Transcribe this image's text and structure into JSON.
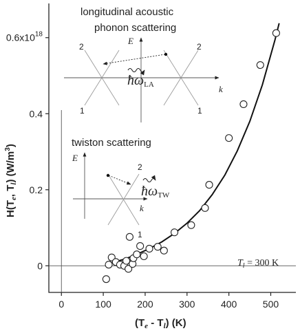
{
  "chart_data": {
    "type": "scatter",
    "xlabel": {
      "open": "(T",
      "sub1": "e",
      "mid": " - T",
      "sub2": "l",
      "close": ") (K)"
    },
    "ylabel": {
      "h": "H(T",
      "sub1": "e",
      "mid": ", T",
      "sub2": "l",
      "close": ")  (W/m",
      "sup": "3",
      "end": ")"
    },
    "xlim": [
      -30,
      560
    ],
    "ylim": [
      -0.07,
      0.69
    ],
    "x_ticks": [
      {
        "value": 0,
        "label": "0"
      },
      {
        "value": 100,
        "label": "100"
      },
      {
        "value": 200,
        "label": "200"
      },
      {
        "value": 300,
        "label": "300"
      },
      {
        "value": 400,
        "label": "400"
      },
      {
        "value": 500,
        "label": "500"
      }
    ],
    "y_ticks": [
      {
        "value": 0,
        "label": "0"
      },
      {
        "value": 0.2,
        "label": "0.2"
      },
      {
        "value": 0.4,
        "label": "0.4"
      },
      {
        "value": 0.6,
        "label": "0.6x10",
        "sup": "18"
      }
    ],
    "series": [
      {
        "kind": "points",
        "marker": "open-circle",
        "x": [
          107,
          113,
          120,
          130,
          140,
          150,
          155,
          160,
          163,
          170,
          172,
          180,
          188,
          197,
          210,
          230,
          245,
          270,
          310,
          343,
          353,
          400,
          435,
          475,
          513
        ],
        "y": [
          -0.035,
          0.003,
          0.022,
          0.01,
          0.003,
          0.0,
          0.013,
          -0.008,
          0.076,
          0.005,
          0.02,
          0.03,
          0.052,
          0.025,
          0.045,
          0.05,
          0.04,
          0.088,
          0.107,
          0.152,
          0.213,
          0.336,
          0.425,
          0.528,
          0.612
        ]
      },
      {
        "kind": "curve",
        "x": [
          120,
          150,
          180,
          210,
          240,
          270,
          300,
          330,
          360,
          390,
          420,
          450,
          480,
          510,
          520
        ],
        "y": [
          0.008,
          0.017,
          0.03,
          0.045,
          0.063,
          0.085,
          0.112,
          0.145,
          0.187,
          0.238,
          0.302,
          0.38,
          0.476,
          0.594,
          0.638
        ]
      }
    ],
    "reference_line": {
      "y": 0,
      "label_var": "T",
      "label_sub": "l",
      "label_rest": " = 300 K"
    },
    "grid": false,
    "legend": "none"
  },
  "insets": {
    "top": {
      "title_line1": "longitudinal acoustic",
      "title_line2": "phonon scattering",
      "axis_e": "E",
      "axis_k": "k",
      "branch_upper_left": "2",
      "branch_upper_right": "2",
      "branch_lower_left": "1",
      "branch_lower_right": "1",
      "omega_hbar": "ħω",
      "omega_sub": "LA"
    },
    "bottom": {
      "title": "twiston scattering",
      "axis_e": "E",
      "axis_k": "k",
      "branch_upper": "2",
      "branch_lower": "1",
      "omega_hbar": "ħω",
      "omega_sub": "TW"
    }
  }
}
